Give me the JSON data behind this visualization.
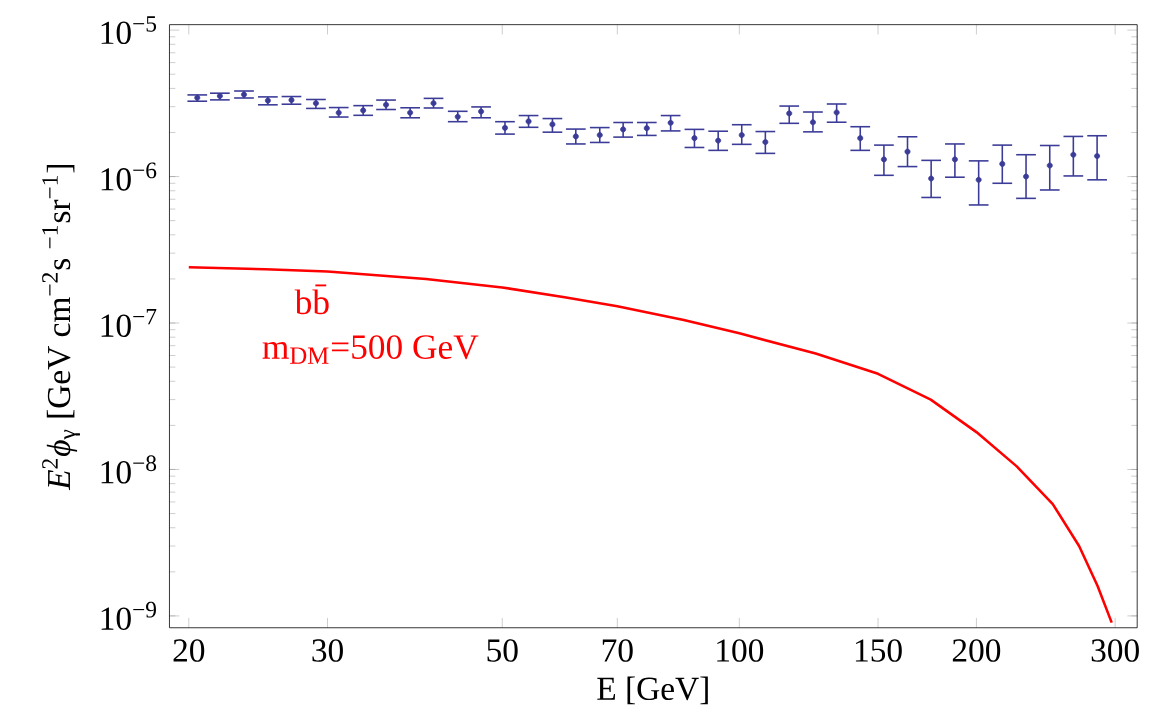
{
  "chart_data": {
    "type": "scatter",
    "xlabel": "E [GeV]",
    "ylabel": "*E*$^{2}$*ϕ*$_{γ}$ [GeV cm$^{−2}$s $^{−1}$sr$^{−1}$]",
    "log": "xy",
    "xlim": [
      18.9,
      320
    ],
    "ylim": [
      8.3e-10,
      1.09e-05
    ],
    "xticks": [
      20,
      30,
      50,
      70,
      100,
      150,
      200,
      300
    ],
    "yticks": [
      {
        "value": 1e-09,
        "label": "10$^{−9}$"
      },
      {
        "value": 1e-08,
        "label": "10$^{−8}$"
      },
      {
        "value": 1e-07,
        "label": "10$^{−7}$"
      },
      {
        "value": 1e-06,
        "label": "10$^{−6}$"
      },
      {
        "value": 1e-05,
        "label": "10$^{−5}$"
      }
    ],
    "annotations": [
      "bb̄",
      "m$_{DM}$=500 GeV"
    ],
    "series": [
      {
        "color": "#3b3b98",
        "marker": "circle",
        "x": [
          20.5,
          21.9,
          23.5,
          25.2,
          27.0,
          29.0,
          31.0,
          33.3,
          35.6,
          38.2,
          40.9,
          43.9,
          47.0,
          50.4,
          54.0,
          57.9,
          62.0,
          66.5,
          71.2,
          76.3,
          81.8,
          87.7,
          94.0,
          100.7,
          107.9,
          115.7,
          124.0,
          132.9,
          142.4,
          152.6,
          163.5,
          175.2,
          187.8,
          201.3,
          215.7,
          231.2,
          247.8,
          265.5,
          284.6
        ],
        "values": [
          3.45e-06,
          3.55e-06,
          3.63e-06,
          3.3e-06,
          3.33e-06,
          3.17e-06,
          2.73e-06,
          2.83e-06,
          3.09e-06,
          2.73e-06,
          3.17e-06,
          2.56e-06,
          2.78e-06,
          2.15e-06,
          2.38e-06,
          2.27e-06,
          1.88e-06,
          1.92e-06,
          2.1e-06,
          2.14e-06,
          2.33e-06,
          1.83e-06,
          1.76e-06,
          1.92e-06,
          1.72e-06,
          2.7e-06,
          2.35e-06,
          2.74e-06,
          1.83e-06,
          1.31e-06,
          1.48e-06,
          9.7e-07,
          1.31e-06,
          9.5e-07,
          1.22e-06,
          1e-06,
          1.19e-06,
          1.41e-06,
          1.38e-06
        ],
        "errors": [
          [
            3.27e-06,
            3.61e-06
          ],
          [
            3.34e-06,
            3.71e-06
          ],
          [
            3.44e-06,
            3.84e-06
          ],
          [
            3.09e-06,
            3.5e-06
          ],
          [
            3.12e-06,
            3.52e-06
          ],
          [
            2.92e-06,
            3.36e-06
          ],
          [
            2.55e-06,
            2.96e-06
          ],
          [
            2.62e-06,
            3.05e-06
          ],
          [
            2.87e-06,
            3.33e-06
          ],
          [
            2.52e-06,
            2.95e-06
          ],
          [
            2.94e-06,
            3.42e-06
          ],
          [
            2.37e-06,
            2.79e-06
          ],
          [
            2.52e-06,
            2.99e-06
          ],
          [
            1.95e-06,
            2.37e-06
          ],
          [
            2.17e-06,
            2.61e-06
          ],
          [
            2.01e-06,
            2.49e-06
          ],
          [
            1.67e-06,
            2.11e-06
          ],
          [
            1.71e-06,
            2.16e-06
          ],
          [
            1.86e-06,
            2.34e-06
          ],
          [
            1.91e-06,
            2.34e-06
          ],
          [
            2.05e-06,
            2.61e-06
          ],
          [
            1.58e-06,
            2.1e-06
          ],
          [
            1.51e-06,
            2.04e-06
          ],
          [
            1.66e-06,
            2.26e-06
          ],
          [
            1.44e-06,
            2.03e-06
          ],
          [
            2.31e-06,
            3.03e-06
          ],
          [
            2.02e-06,
            2.76e-06
          ],
          [
            2.35e-06,
            3.13e-06
          ],
          [
            1.51e-06,
            2.19e-06
          ],
          [
            1.02e-06,
            1.64e-06
          ],
          [
            1.17e-06,
            1.87e-06
          ],
          [
            7.2e-07,
            1.29e-06
          ],
          [
            9.9e-07,
            1.67e-06
          ],
          [
            6.4e-07,
            1.28e-06
          ],
          [
            9e-07,
            1.64e-06
          ],
          [
            7.1e-07,
            1.41e-06
          ],
          [
            8.1e-07,
            1.63e-06
          ],
          [
            1.01e-06,
            1.88e-06
          ],
          [
            9.5e-07,
            1.9e-06
          ]
        ]
      },
      {
        "type": "line",
        "color": "#ff0000",
        "marker": "none",
        "x": [
          20,
          25,
          30,
          40,
          50,
          60,
          70,
          85,
          100,
          125,
          150,
          175,
          200,
          225,
          250,
          270,
          285,
          297
        ],
        "values": [
          2.4e-07,
          2.33e-07,
          2.25e-07,
          2e-07,
          1.75e-07,
          1.5e-07,
          1.3e-07,
          1.05e-07,
          8.5e-08,
          6.2e-08,
          4.5e-08,
          3e-08,
          1.8e-08,
          1.05e-08,
          5.8e-09,
          3e-09,
          1.6e-09,
          9e-10
        ]
      }
    ]
  }
}
